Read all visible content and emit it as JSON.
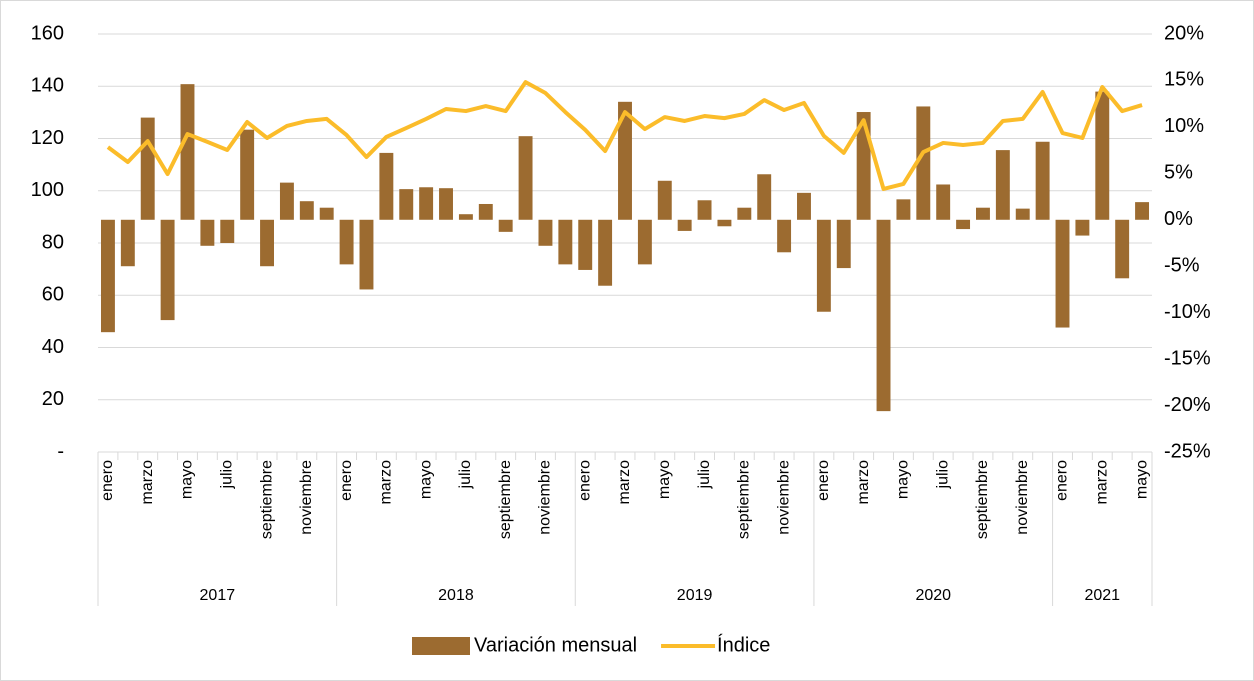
{
  "chart_data": {
    "type": "bar-line",
    "groups": [
      {
        "name": "2017",
        "categories": [
          "enero",
          null,
          "marzo",
          null,
          "mayo",
          null,
          "julio",
          null,
          "septiembre",
          null,
          "noviembre",
          null
        ]
      },
      {
        "name": "2018",
        "categories": [
          "enero",
          null,
          "marzo",
          null,
          "mayo",
          null,
          "julio",
          null,
          "septiembre",
          null,
          "noviembre",
          null
        ]
      },
      {
        "name": "2019",
        "categories": [
          "enero",
          null,
          "marzo",
          null,
          "mayo",
          null,
          "julio",
          null,
          "septiembre",
          null,
          "noviembre",
          null
        ]
      },
      {
        "name": "2020",
        "categories": [
          "enero",
          null,
          "marzo",
          null,
          "mayo",
          null,
          "julio",
          null,
          "septiembre",
          null,
          "noviembre",
          null
        ]
      },
      {
        "name": "2021",
        "categories": [
          "enero",
          null,
          "marzo",
          null,
          "mayo"
        ]
      }
    ],
    "series": [
      {
        "name": "Variación mensual",
        "type": "bar",
        "axis": "y2",
        "color": "#9c6b30",
        "values": [
          -12.1,
          -5.0,
          11.0,
          -10.8,
          14.6,
          -2.8,
          -2.5,
          9.7,
          -5.0,
          4.0,
          2.0,
          1.3,
          -4.8,
          -7.5,
          7.2,
          3.3,
          3.5,
          3.4,
          0.6,
          1.7,
          -1.3,
          9.0,
          -2.8,
          -4.8,
          -5.4,
          -7.1,
          12.7,
          -4.8,
          4.2,
          -1.2,
          2.1,
          -0.7,
          1.3,
          4.9,
          -3.5,
          2.9,
          -9.9,
          -5.2,
          11.6,
          -20.6,
          2.2,
          12.2,
          3.8,
          -1.0,
          1.3,
          7.5,
          1.2,
          8.4,
          -11.6,
          -1.7,
          13.8,
          -6.3,
          1.9
        ]
      },
      {
        "name": "Índice",
        "type": "line",
        "axis": "y",
        "color": "#fbbc2a",
        "values": [
          116.7,
          111,
          119,
          106.4,
          121.7,
          118.7,
          115.6,
          126.3,
          120.2,
          124.8,
          126.7,
          127.5,
          121.3,
          112.9,
          120.6,
          124,
          127.5,
          131.3,
          130.5,
          132.4,
          130.5,
          141.6,
          137.4,
          130.1,
          123.3,
          115.2,
          130.1,
          123.6,
          128.2,
          126.7,
          128.6,
          127.8,
          129.4,
          134.7,
          130.9,
          133.6,
          121,
          114.5,
          127,
          100.7,
          102.6,
          114.8,
          118.3,
          117.5,
          118.3,
          126.7,
          127.5,
          137.8,
          122.1,
          120.2,
          139.7,
          130.5,
          132.8
        ]
      }
    ],
    "ylim": [
      0,
      160
    ],
    "yticks": [
      {
        "value": 0,
        "label": "-"
      },
      20,
      40,
      60,
      80,
      100,
      120,
      140,
      160
    ],
    "y2lim": [
      -25,
      20
    ],
    "y2ticks": [
      {
        "value": -25,
        "label": "-25%"
      },
      {
        "value": -20,
        "label": "-20%"
      },
      {
        "value": -15,
        "label": "-15%"
      },
      {
        "value": -10,
        "label": "-10%"
      },
      {
        "value": -5,
        "label": "-5%"
      },
      {
        "value": 0,
        "label": "0%"
      },
      {
        "value": 5,
        "label": "5%"
      },
      {
        "value": 10,
        "label": "10%"
      },
      {
        "value": 15,
        "label": "15%"
      },
      {
        "value": 20,
        "label": "20%"
      }
    ],
    "grid": true,
    "legend": "bottom"
  }
}
